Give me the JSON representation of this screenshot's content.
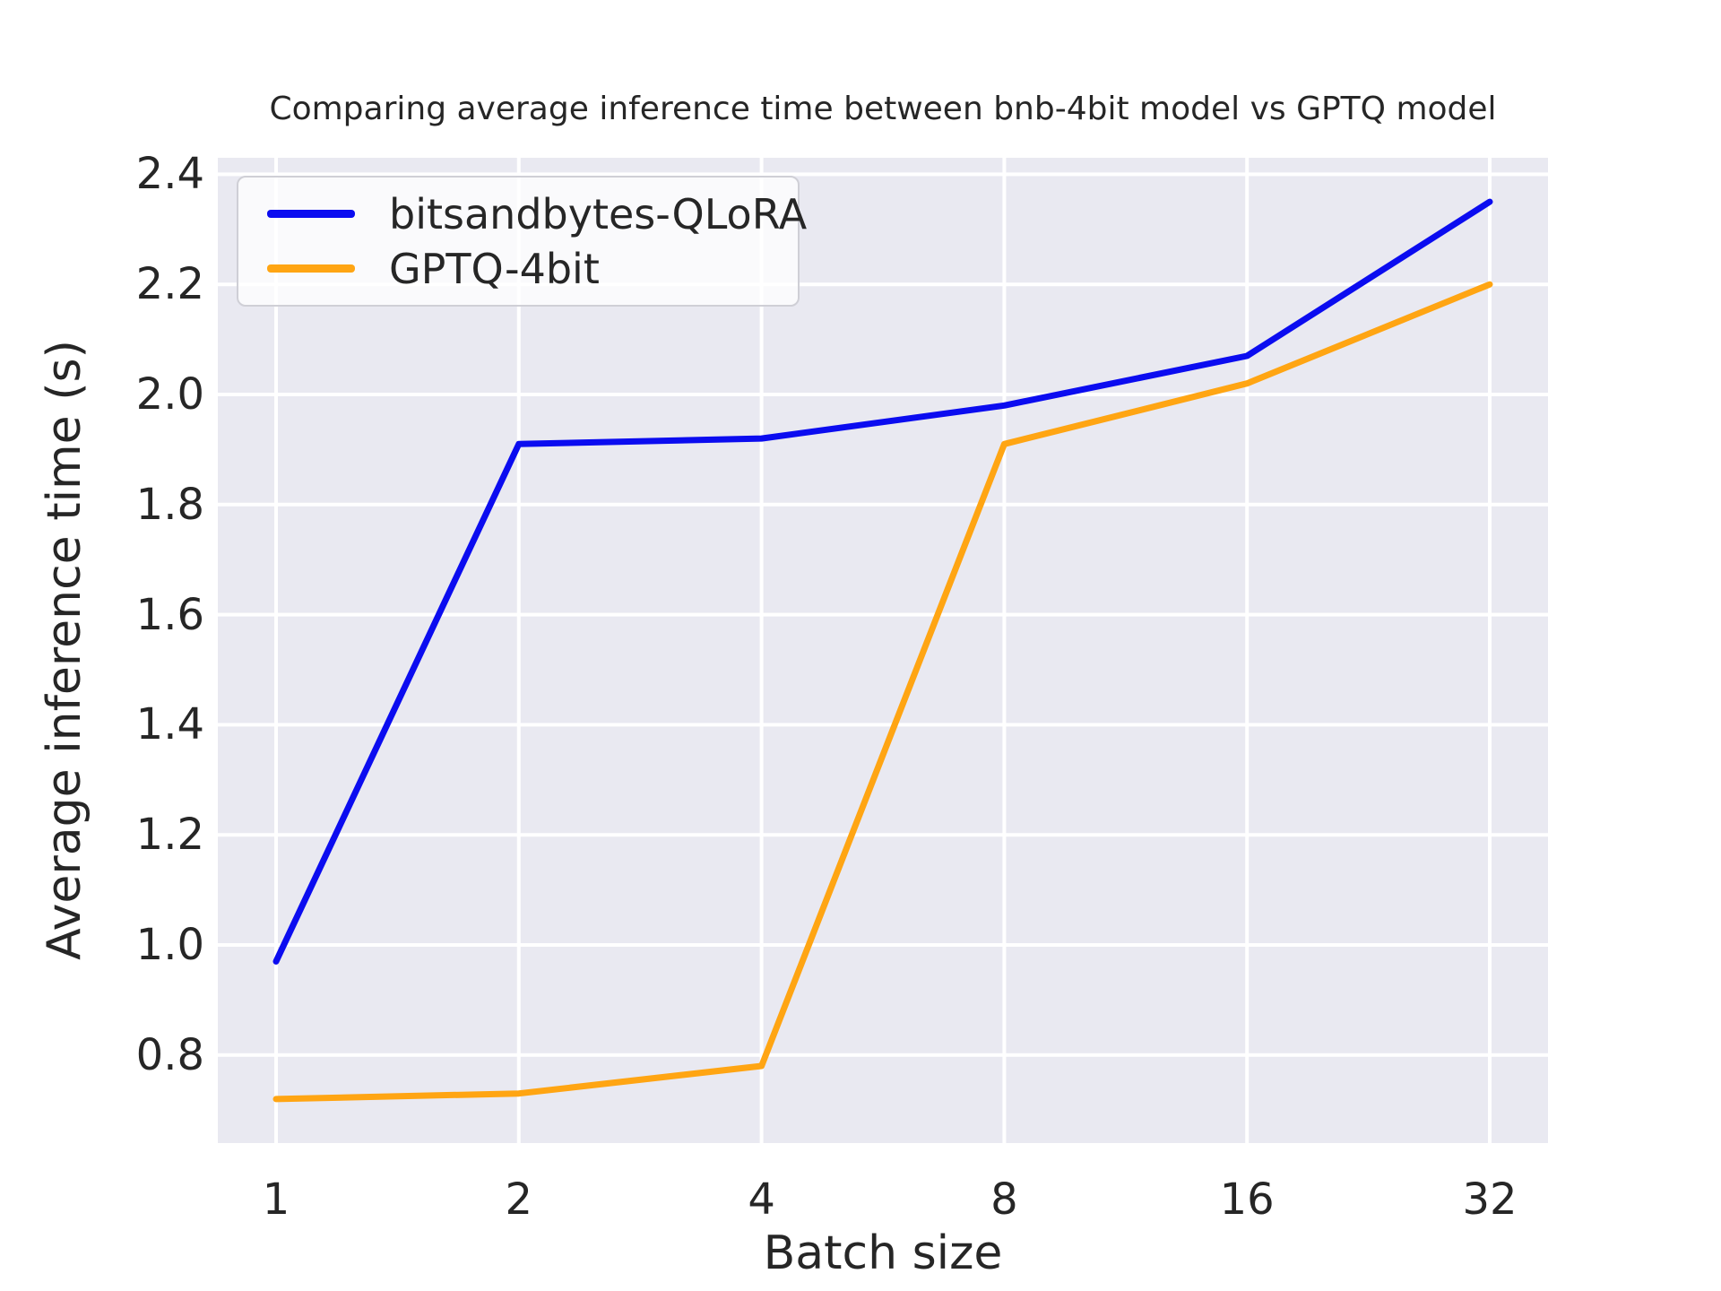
{
  "chart_data": {
    "type": "line",
    "title": "Comparing average inference time between bnb-4bit model vs GPTQ model",
    "xlabel": "Batch size",
    "ylabel": "Average inference time (s)",
    "categories": [
      "1",
      "2",
      "4",
      "8",
      "16",
      "32"
    ],
    "x_scale": "log2-categorical",
    "series": [
      {
        "name": "bitsandbytes-QLoRA",
        "color": "#0b0cf0",
        "values": [
          0.97,
          1.91,
          1.92,
          1.98,
          2.07,
          2.35
        ]
      },
      {
        "name": "GPTQ-4bit",
        "color": "#ffa513",
        "values": [
          0.72,
          0.73,
          0.78,
          1.91,
          2.02,
          2.2
        ]
      }
    ],
    "yticks": [
      0.8,
      1.0,
      1.2,
      1.4,
      1.6,
      1.8,
      2.0,
      2.2,
      2.4
    ],
    "ylim": [
      0.64,
      2.43
    ],
    "grid": true,
    "gridline_color": "#ffffff",
    "plot_background": "#e9e9f1",
    "figure_background": "#ffffff",
    "text_color": "#262626",
    "legend_position": "upper left"
  }
}
